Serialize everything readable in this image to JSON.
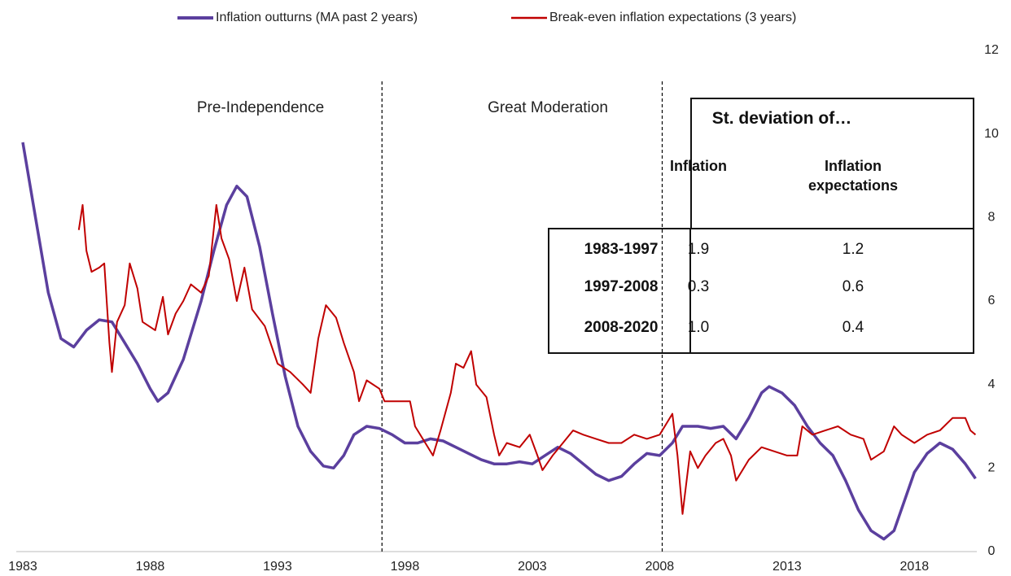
{
  "chart_data": {
    "type": "line",
    "series": [
      {
        "name": "Inflation outturns (MA past 2 years)",
        "color": "#5b3f9e",
        "width": 3.5,
        "x": [
          1983.0,
          1983.5,
          1984,
          1984.5,
          1985,
          1985.5,
          1986,
          1986.5,
          1987,
          1987.5,
          1988,
          1988.3,
          1988.7,
          1989.3,
          1990,
          1990.5,
          1991,
          1991.4,
          1991.8,
          1992.3,
          1992.8,
          1993.3,
          1993.8,
          1994.3,
          1994.8,
          1995.2,
          1995.6,
          1996,
          1996.5,
          1997,
          1997.5,
          1998,
          1998.5,
          1999,
          1999.5,
          2000,
          2000.5,
          2001,
          2001.5,
          2002,
          2002.5,
          2003,
          2003.5,
          2004,
          2004.5,
          2005,
          2005.5,
          2006,
          2006.5,
          2007,
          2007.5,
          2008,
          2008.5,
          2008.9,
          2009.5,
          2010,
          2010.5,
          2011,
          2011.5,
          2012,
          2012.3,
          2012.8,
          2013.3,
          2013.8,
          2014.3,
          2014.8,
          2015.3,
          2015.8,
          2016.3,
          2016.8,
          2017.2,
          2017.6,
          2018,
          2018.5,
          2019,
          2019.5,
          2020,
          2020.4
        ],
        "values": [
          9.8,
          8.0,
          6.2,
          5.1,
          4.9,
          5.3,
          5.55,
          5.5,
          5.0,
          4.5,
          3.9,
          3.6,
          3.8,
          4.6,
          6.0,
          7.2,
          8.3,
          8.75,
          8.5,
          7.3,
          5.7,
          4.2,
          3.0,
          2.4,
          2.05,
          2.0,
          2.3,
          2.8,
          3.0,
          2.95,
          2.8,
          2.6,
          2.6,
          2.7,
          2.65,
          2.5,
          2.35,
          2.2,
          2.1,
          2.1,
          2.15,
          2.1,
          2.3,
          2.5,
          2.35,
          2.1,
          1.85,
          1.7,
          1.8,
          2.1,
          2.35,
          2.3,
          2.6,
          3.0,
          3.0,
          2.95,
          3.0,
          2.7,
          3.2,
          3.8,
          3.95,
          3.8,
          3.5,
          3.0,
          2.6,
          2.3,
          1.7,
          1.0,
          0.5,
          0.3,
          0.5,
          1.2,
          1.9,
          2.35,
          2.6,
          2.45,
          2.1,
          1.75
        ]
      },
      {
        "name": "Break-even inflation expectations (3 years)",
        "color": "#c00000",
        "width": 2,
        "x": [
          1985.2,
          1985.35,
          1985.5,
          1985.7,
          1986,
          1986.2,
          1986.4,
          1986.5,
          1986.7,
          1987,
          1987.2,
          1987.5,
          1987.7,
          1988.2,
          1988.5,
          1988.7,
          1989,
          1989.3,
          1989.6,
          1990,
          1990.3,
          1990.6,
          1990.8,
          1991.1,
          1991.4,
          1991.7,
          1992,
          1992.5,
          1993,
          1993.5,
          1994,
          1994.3,
          1994.6,
          1994.9,
          1995.3,
          1995.6,
          1996,
          1996.2,
          1996.5,
          1997,
          1997.2,
          1998.2,
          1998.4,
          1998.8,
          1999.1,
          1999.4,
          1999.8,
          2000,
          2000.3,
          2000.6,
          2000.8,
          2001.2,
          2001.5,
          2001.7,
          2002,
          2002.5,
          2002.9,
          2003.2,
          2003.4,
          2003.8,
          2004.2,
          2004.6,
          2005,
          2005.5,
          2006,
          2006.5,
          2007,
          2007.5,
          2008,
          2008.3,
          2008.5,
          2008.7,
          2008.9,
          2009.2,
          2009.5,
          2009.8,
          2010.2,
          2010.5,
          2010.8,
          2011,
          2011.5,
          2012,
          2012.5,
          2013,
          2013.4,
          2013.6,
          2014,
          2014.5,
          2015,
          2015.5,
          2016,
          2016.3,
          2016.8,
          2017.2,
          2017.5,
          2018,
          2018.5,
          2019,
          2019.5,
          2020,
          2020.2,
          2020.4
        ],
        "values": [
          7.7,
          8.3,
          7.2,
          6.7,
          6.8,
          6.9,
          5.0,
          4.3,
          5.5,
          5.9,
          6.9,
          6.3,
          5.5,
          5.3,
          6.1,
          5.2,
          5.7,
          6.0,
          6.4,
          6.2,
          6.6,
          8.3,
          7.5,
          7.0,
          6.0,
          6.8,
          5.8,
          5.4,
          4.5,
          4.3,
          4.0,
          3.8,
          5.1,
          5.9,
          5.6,
          5.0,
          4.3,
          3.6,
          4.1,
          3.9,
          3.6,
          3.6,
          3.0,
          2.6,
          2.3,
          2.9,
          3.8,
          4.5,
          4.4,
          4.8,
          4.0,
          3.7,
          2.8,
          2.3,
          2.6,
          2.5,
          2.8,
          2.3,
          1.95,
          2.3,
          2.6,
          2.9,
          2.8,
          2.7,
          2.6,
          2.6,
          2.8,
          2.7,
          2.8,
          3.1,
          3.3,
          2.3,
          0.9,
          2.4,
          2.0,
          2.3,
          2.6,
          2.7,
          2.3,
          1.7,
          2.2,
          2.5,
          2.4,
          2.3,
          2.3,
          3.0,
          2.8,
          2.9,
          3.0,
          2.8,
          2.7,
          2.2,
          2.4,
          3.0,
          2.8,
          2.6,
          2.8,
          2.9,
          3.2,
          3.2,
          2.9,
          2.8
        ]
      }
    ],
    "xlim": [
      1983,
      2020.45
    ],
    "xticks": [
      1983,
      1988,
      1993,
      1998,
      2003,
      2008,
      2013,
      2018
    ],
    "ylim": [
      0,
      12
    ],
    "yticks": [
      0,
      2,
      4,
      6,
      8,
      10,
      12
    ],
    "vlines": [
      1997.1,
      2008.1
    ],
    "annotations": [
      "Pre-Independence",
      "Great Moderation"
    ],
    "legend": "top"
  },
  "table": {
    "title": "St. deviation of…",
    "columns": [
      "Inflation",
      "Inflation expectations"
    ],
    "rows": [
      [
        "1983-1997",
        "1.9",
        "1.2"
      ],
      [
        "1997-2008",
        "0.3",
        "0.6"
      ],
      [
        "2008-2020",
        "1.0",
        "0.4"
      ]
    ]
  }
}
